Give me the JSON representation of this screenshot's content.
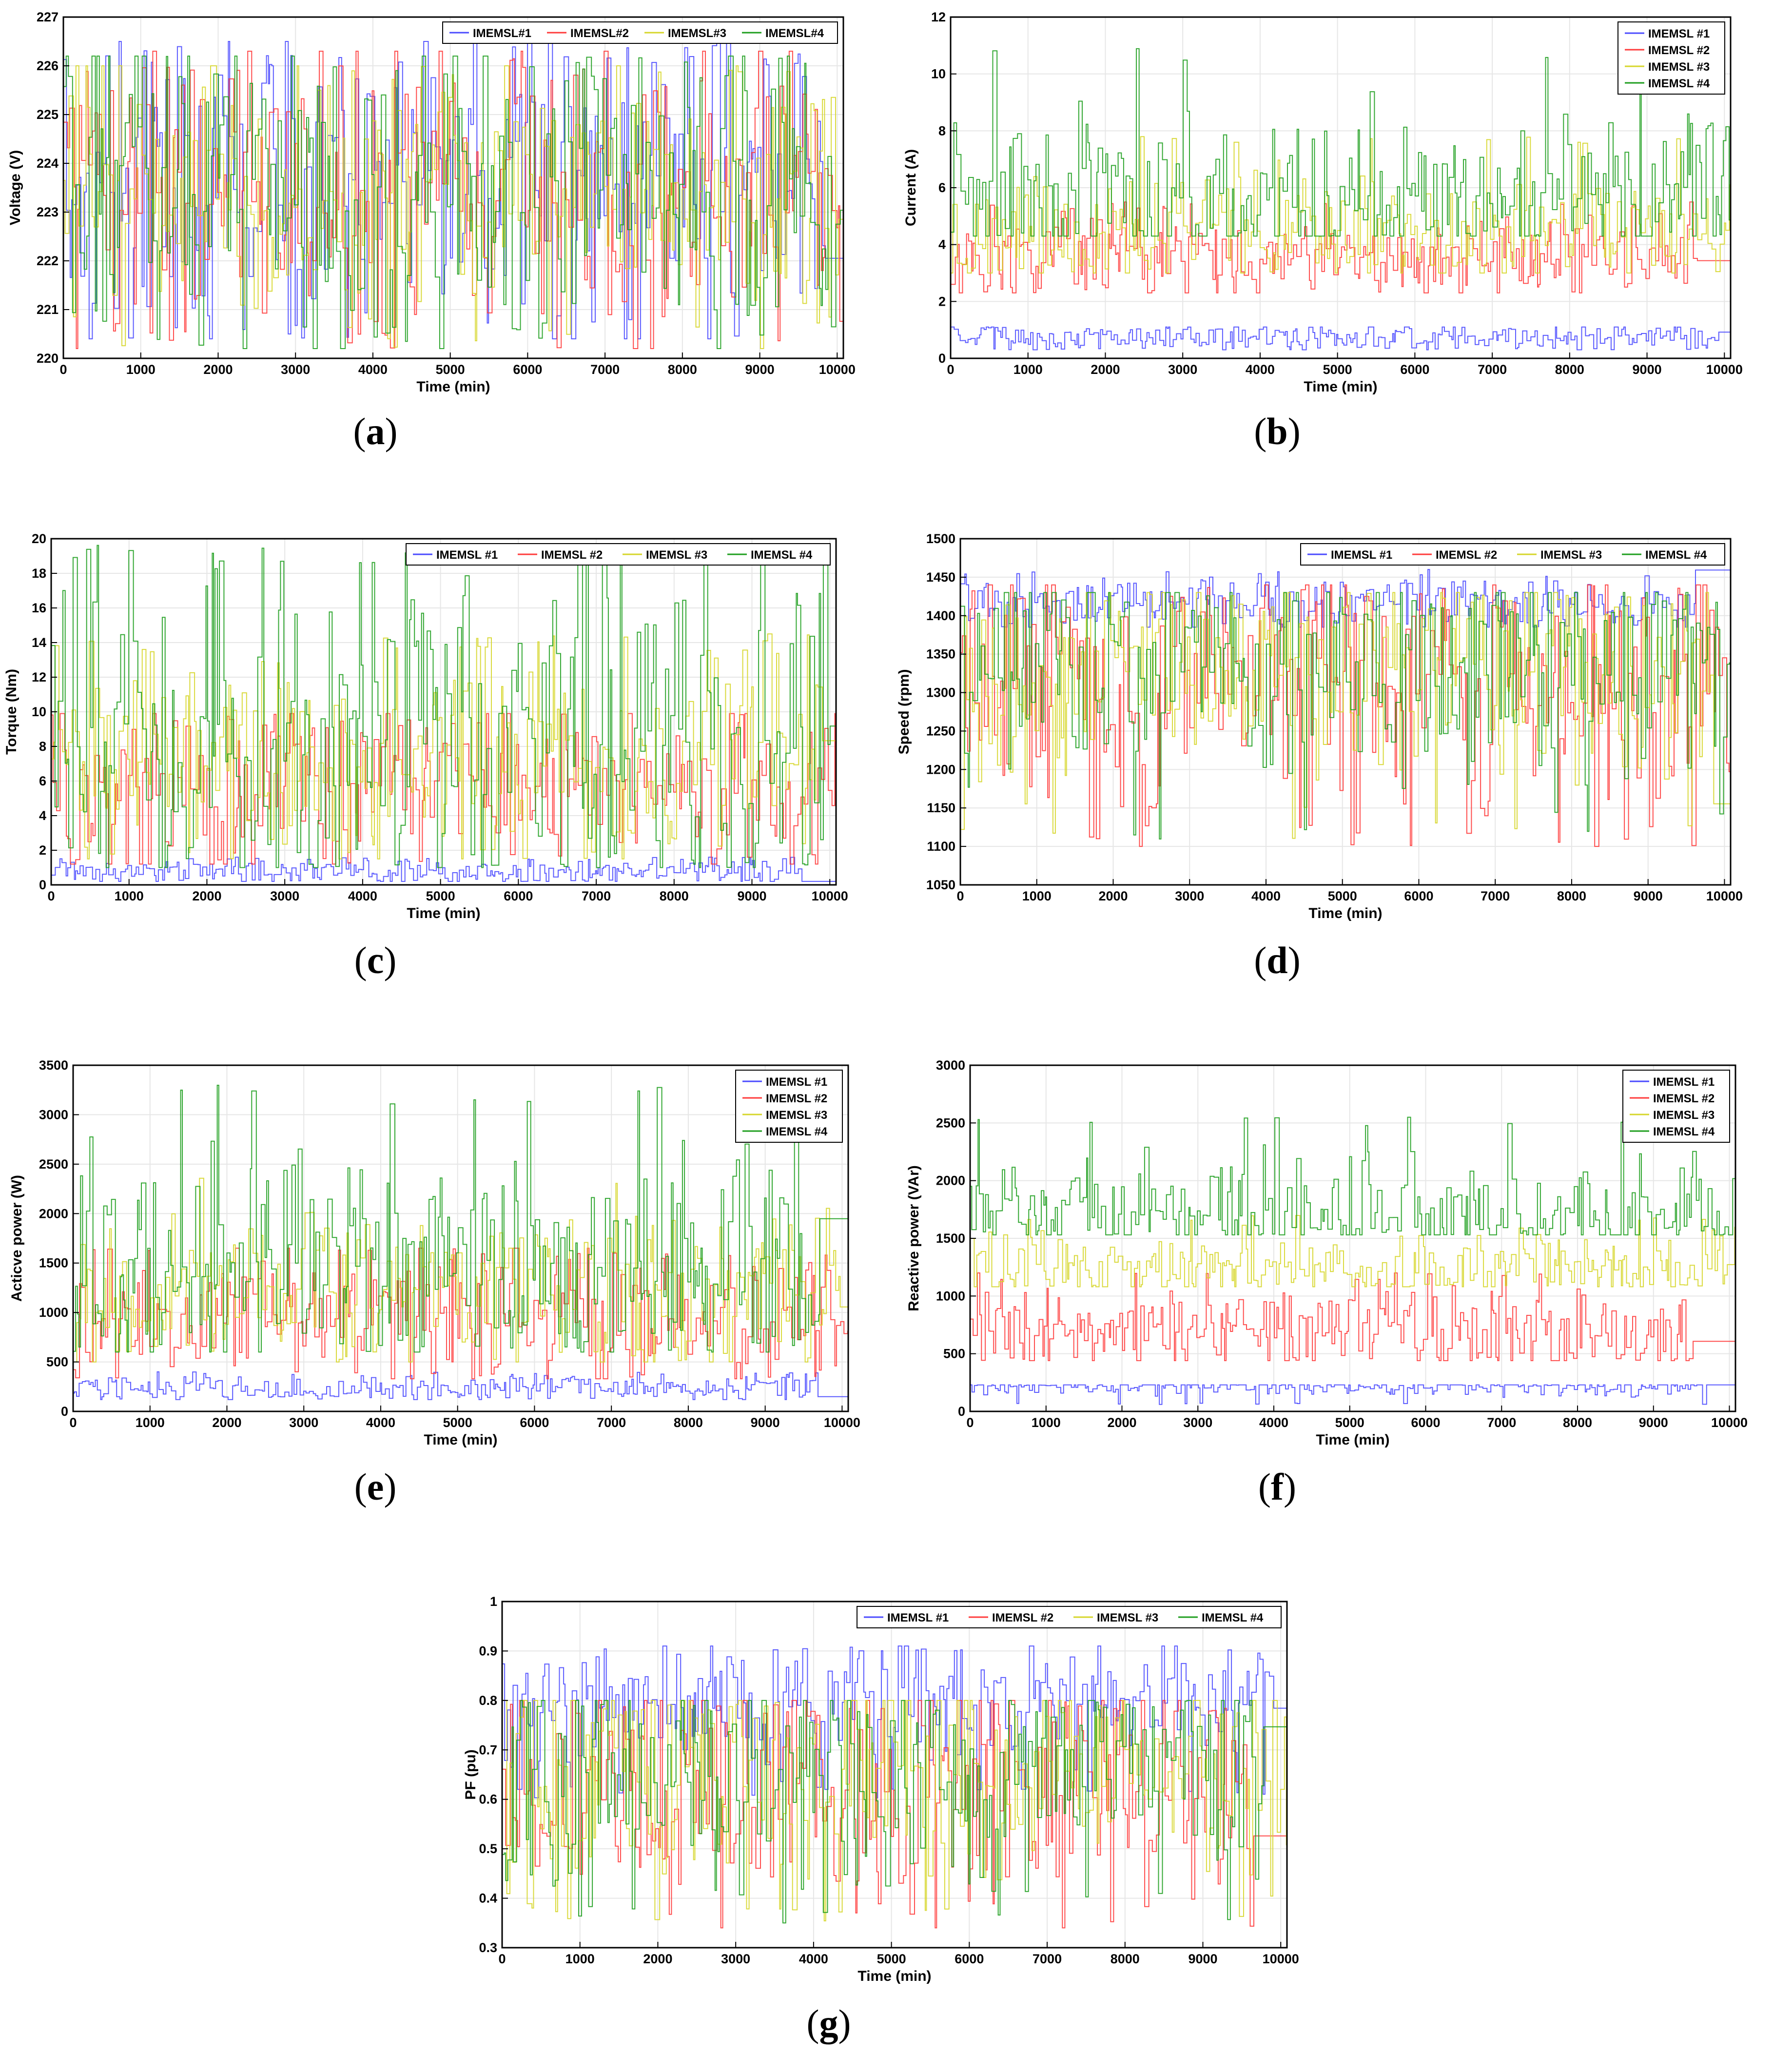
{
  "figure_id": "figure",
  "chart_data": [
    {
      "id": "a",
      "type": "line",
      "caption_letter": "a",
      "xlabel": "Time (min)",
      "ylabel": "Voltage (V)",
      "xlim": [
        0,
        10080
      ],
      "ylim": [
        220,
        227
      ],
      "xticks": [
        0,
        1000,
        2000,
        3000,
        4000,
        5000,
        6000,
        7000,
        8000,
        9000,
        10000
      ],
      "yticks": [
        220,
        221,
        222,
        223,
        224,
        225,
        226,
        227
      ],
      "xtick_labels": [
        "0",
        "1000",
        "2000",
        "3000",
        "4000",
        "5000",
        "6000",
        "7000",
        "8000",
        "9000",
        "10000"
      ],
      "ytick_labels": [
        "220",
        "221",
        "222",
        "223",
        "224",
        "225",
        "226",
        "227"
      ],
      "legend_position": "top-right-horizontal",
      "grid": true,
      "series": [
        {
          "name": "IMEMSL#1",
          "color": "#4a4aff",
          "min": 220.4,
          "max": 226.5,
          "mean": 223.6,
          "spread": 1.6
        },
        {
          "name": "IMEMSL#2",
          "color": "#ff3b3b",
          "min": 220.2,
          "max": 226.3,
          "mean": 223.5,
          "spread": 1.6
        },
        {
          "name": "IMEMSL#3",
          "color": "#d6d62a",
          "min": 220.2,
          "max": 226.0,
          "mean": 223.5,
          "spread": 1.5
        },
        {
          "name": "IMEMSL#4",
          "color": "#1e9e1e",
          "min": 220.2,
          "max": 226.2,
          "mean": 223.4,
          "spread": 1.6
        }
      ]
    },
    {
      "id": "b",
      "type": "line",
      "caption_letter": "b",
      "xlabel": "Time (min)",
      "ylabel": "Current (A)",
      "xlim": [
        0,
        10080
      ],
      "ylim": [
        0,
        12
      ],
      "xticks": [
        0,
        1000,
        2000,
        3000,
        4000,
        5000,
        6000,
        7000,
        8000,
        9000,
        10000
      ],
      "yticks": [
        0,
        2,
        4,
        6,
        8,
        10,
        12
      ],
      "xtick_labels": [
        "0",
        "1000",
        "2000",
        "3000",
        "4000",
        "5000",
        "6000",
        "7000",
        "8000",
        "9000",
        "10000"
      ],
      "ytick_labels": [
        "0",
        "2",
        "4",
        "6",
        "8",
        "10",
        "12"
      ],
      "legend_position": "top-right-vertical",
      "grid": true,
      "series": [
        {
          "name": "IMEMSL #1",
          "color": "#4a4aff",
          "min": 0.3,
          "max": 1.1,
          "mean": 0.75,
          "spread": 0.25
        },
        {
          "name": "IMEMSL #2",
          "color": "#ff3b3b",
          "min": 2.3,
          "max": 5.5,
          "mean": 3.6,
          "spread": 0.8
        },
        {
          "name": "IMEMSL #3",
          "color": "#d6d62a",
          "min": 3.0,
          "max": 7.8,
          "mean": 4.6,
          "spread": 1.0
        },
        {
          "name": "IMEMSL #4",
          "color": "#1e9e1e",
          "min": 4.3,
          "max": 10.9,
          "mean": 5.6,
          "spread": 1.6
        }
      ]
    },
    {
      "id": "c",
      "type": "line",
      "caption_letter": "c",
      "xlabel": "Time (min)",
      "ylabel": "Torque (Nm)",
      "xlim": [
        0,
        10080
      ],
      "ylim": [
        0,
        20
      ],
      "xticks": [
        0,
        1000,
        2000,
        3000,
        4000,
        5000,
        6000,
        7000,
        8000,
        9000,
        10000
      ],
      "yticks": [
        0,
        2,
        4,
        6,
        8,
        10,
        12,
        14,
        16,
        18,
        20
      ],
      "xtick_labels": [
        "0",
        "1000",
        "2000",
        "3000",
        "4000",
        "5000",
        "6000",
        "7000",
        "8000",
        "9000",
        "10000"
      ],
      "ytick_labels": [
        "0",
        "2",
        "4",
        "6",
        "8",
        "10",
        "12",
        "14",
        "16",
        "18",
        "20"
      ],
      "legend_position": "top-right-horizontal",
      "grid": true,
      "series": [
        {
          "name": "IMEMSL #1",
          "color": "#4a4aff",
          "min": 0.2,
          "max": 1.6,
          "mean": 0.8,
          "spread": 0.4
        },
        {
          "name": "IMEMSL #2",
          "color": "#ff3b3b",
          "min": 1.2,
          "max": 9.9,
          "mean": 5.5,
          "spread": 2.5
        },
        {
          "name": "IMEMSL #3",
          "color": "#d6d62a",
          "min": 1.5,
          "max": 14.5,
          "mean": 7.5,
          "spread": 3.0
        },
        {
          "name": "IMEMSL #4",
          "color": "#1e9e1e",
          "min": 1.0,
          "max": 19.8,
          "mean": 8.5,
          "spread": 4.5
        }
      ]
    },
    {
      "id": "d",
      "type": "line",
      "caption_letter": "d",
      "xlabel": "Time (min)",
      "ylabel": "Speed (rpm)",
      "xlim": [
        0,
        10080
      ],
      "ylim": [
        1050,
        1500
      ],
      "xticks": [
        0,
        1000,
        2000,
        3000,
        4000,
        5000,
        6000,
        7000,
        8000,
        9000,
        10000
      ],
      "yticks": [
        1050,
        1100,
        1150,
        1200,
        1250,
        1300,
        1350,
        1400,
        1450,
        1500
      ],
      "xtick_labels": [
        "0",
        "1000",
        "2000",
        "3000",
        "4000",
        "5000",
        "6000",
        "7000",
        "8000",
        "9000",
        "10000"
      ],
      "ytick_labels": [
        "1050",
        "1100",
        "1150",
        "1200",
        "1250",
        "1300",
        "1350",
        "1400",
        "1450",
        "1500"
      ],
      "legend_position": "top-right-horizontal",
      "grid": true,
      "series": [
        {
          "name": "IMEMSL #1",
          "color": "#4a4aff",
          "min": 1385,
          "max": 1460,
          "mean": 1415,
          "spread": 20
        },
        {
          "name": "IMEMSL #2",
          "color": "#ff3b3b",
          "min": 1100,
          "max": 1440,
          "mean": 1300,
          "spread": 90
        },
        {
          "name": "IMEMSL #3",
          "color": "#d6d62a",
          "min": 1110,
          "max": 1430,
          "mean": 1330,
          "spread": 70
        },
        {
          "name": "IMEMSL #4",
          "color": "#1e9e1e",
          "min": 1105,
          "max": 1430,
          "mean": 1330,
          "spread": 75
        }
      ]
    },
    {
      "id": "e",
      "type": "line",
      "caption_letter": "e",
      "xlabel": "Time (min)",
      "ylabel": "Acticve power (W)",
      "xlim": [
        0,
        10080
      ],
      "ylim": [
        0,
        3500
      ],
      "xticks": [
        0,
        1000,
        2000,
        3000,
        4000,
        5000,
        6000,
        7000,
        8000,
        9000,
        10000
      ],
      "yticks": [
        0,
        500,
        1000,
        1500,
        2000,
        2500,
        3000,
        3500
      ],
      "xtick_labels": [
        "0",
        "1000",
        "2000",
        "3000",
        "4000",
        "5000",
        "6000",
        "7000",
        "8000",
        "9000",
        "10000"
      ],
      "ytick_labels": [
        "0",
        "500",
        "1000",
        "1500",
        "2000",
        "2500",
        "3000",
        "3500"
      ],
      "legend_position": "top-right-vertical",
      "grid": true,
      "series": [
        {
          "name": "IMEMSL #1",
          "color": "#4a4aff",
          "min": 120,
          "max": 400,
          "mean": 240,
          "spread": 70
        },
        {
          "name": "IMEMSL #2",
          "color": "#ff3b3b",
          "min": 330,
          "max": 1650,
          "mean": 950,
          "spread": 350
        },
        {
          "name": "IMEMSL #3",
          "color": "#d6d62a",
          "min": 500,
          "max": 2400,
          "mean": 1250,
          "spread": 400
        },
        {
          "name": "IMEMSL #4",
          "color": "#1e9e1e",
          "min": 600,
          "max": 3300,
          "mean": 1400,
          "spread": 650
        }
      ]
    },
    {
      "id": "f",
      "type": "line",
      "caption_letter": "f",
      "xlabel": "Time (min)",
      "ylabel": "Reactive power (VAr)",
      "xlim": [
        0,
        10080
      ],
      "ylim": [
        0,
        3000
      ],
      "xticks": [
        0,
        1000,
        2000,
        3000,
        4000,
        5000,
        6000,
        7000,
        8000,
        9000,
        10000
      ],
      "yticks": [
        0,
        500,
        1000,
        1500,
        2000,
        2500,
        3000
      ],
      "xtick_labels": [
        "0",
        "1000",
        "2000",
        "3000",
        "4000",
        "5000",
        "6000",
        "7000",
        "8000",
        "9000",
        "10000"
      ],
      "ytick_labels": [
        "0",
        "500",
        "1000",
        "1500",
        "2000",
        "2500",
        "3000"
      ],
      "legend_position": "top-right-vertical",
      "grid": true,
      "series": [
        {
          "name": "IMEMSL #1",
          "color": "#4a4aff",
          "min": 60,
          "max": 230,
          "mean": 215,
          "spread": 40
        },
        {
          "name": "IMEMSL #2",
          "color": "#ff3b3b",
          "min": 440,
          "max": 1200,
          "mean": 720,
          "spread": 200
        },
        {
          "name": "IMEMSL #3",
          "color": "#d6d62a",
          "min": 1080,
          "max": 1700,
          "mean": 1250,
          "spread": 150
        },
        {
          "name": "IMEMSL #4",
          "color": "#1e9e1e",
          "min": 1530,
          "max": 2550,
          "mean": 1720,
          "spread": 250
        }
      ]
    },
    {
      "id": "g",
      "type": "line",
      "caption_letter": "g",
      "xlabel": "Time (min)",
      "ylabel": "PF (pu)",
      "xlim": [
        0,
        10080
      ],
      "ylim": [
        0.3,
        1
      ],
      "xticks": [
        0,
        1000,
        2000,
        3000,
        4000,
        5000,
        6000,
        7000,
        8000,
        9000,
        10000
      ],
      "yticks": [
        0.3,
        0.4,
        0.5,
        0.6,
        0.7,
        0.8,
        0.9,
        1
      ],
      "xtick_labels": [
        "0",
        "1000",
        "2000",
        "3000",
        "4000",
        "5000",
        "6000",
        "7000",
        "8000",
        "9000",
        "10000"
      ],
      "ytick_labels": [
        "0.3",
        "0.4",
        "0.5",
        "0.6",
        "0.7",
        "0.8",
        "0.9",
        "1"
      ],
      "legend_position": "top-right-horizontal",
      "grid": true,
      "series": [
        {
          "name": "IMEMSL #1",
          "color": "#4a4aff",
          "min": 0.6,
          "max": 0.91,
          "mean": 0.8,
          "spread": 0.07
        },
        {
          "name": "IMEMSL #2",
          "color": "#ff3b3b",
          "min": 0.34,
          "max": 0.8,
          "mean": 0.62,
          "spread": 0.13
        },
        {
          "name": "IMEMSL #3",
          "color": "#d6d62a",
          "min": 0.35,
          "max": 0.8,
          "mean": 0.65,
          "spread": 0.12
        },
        {
          "name": "IMEMSL #4",
          "color": "#1e9e1e",
          "min": 0.35,
          "max": 0.8,
          "mean": 0.64,
          "spread": 0.13
        }
      ]
    }
  ]
}
